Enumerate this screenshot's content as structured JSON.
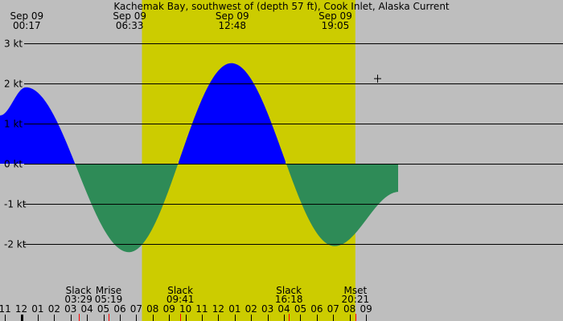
{
  "chart_data": {
    "type": "area",
    "title": "Kachemak Bay, southwest of (depth 57 ft), Cook Inlet, Alaska Current",
    "unit": "kt",
    "ylim": [
      -3,
      3
    ],
    "y_ticks": [
      {
        "value": 3,
        "label": "3 kt"
      },
      {
        "value": 2,
        "label": "2 kt"
      },
      {
        "value": 1,
        "label": "1 kt"
      },
      {
        "value": 0,
        "label": "0 kt"
      },
      {
        "value": -1,
        "label": "-1 kt"
      },
      {
        "value": -2,
        "label": "-2 kt"
      }
    ],
    "x_hours_range": [
      -1.3,
      33.0
    ],
    "daylight_hours": [
      7.35,
      20.35
    ],
    "extrema": [
      {
        "date": "Sep 09",
        "time": "00:17",
        "hours": 0.283,
        "speed_kt": 1.9
      },
      {
        "date": "Sep 09",
        "time": "06:33",
        "hours": 6.55,
        "speed_kt": -2.2
      },
      {
        "date": "Sep 09",
        "time": "12:48",
        "hours": 12.8,
        "speed_kt": 2.5
      },
      {
        "date": "Sep 09",
        "time": "19:05",
        "hours": 19.083,
        "speed_kt": -2.05
      }
    ],
    "curve_start": {
      "hours": -1.3,
      "speed_kt": 1.2
    },
    "curve_end": {
      "hours": 23.0,
      "speed_kt": -0.7
    },
    "events": [
      {
        "label": "Slack",
        "time": "03:29",
        "hours": 3.483,
        "tick_color": "#ff0000"
      },
      {
        "label": "Mrise",
        "time": "05:19",
        "hours": 5.317,
        "tick_color": "#ff0000"
      },
      {
        "label": "Slack",
        "time": "09:41",
        "hours": 9.683,
        "tick_color": "#ff0000"
      },
      {
        "label": "Slack",
        "time": "16:18",
        "hours": 16.3,
        "tick_color": "#ff0000"
      },
      {
        "label": "Mset",
        "time": "20:21",
        "hours": 20.35,
        "tick_color": "#ff0000"
      }
    ],
    "hour_ticks": [
      {
        "label": "11",
        "hours": -1
      },
      {
        "label": "12",
        "hours": 0,
        "midnight": true
      },
      {
        "label": "01",
        "hours": 1
      },
      {
        "label": "02",
        "hours": 2
      },
      {
        "label": "03",
        "hours": 3
      },
      {
        "label": "04",
        "hours": 4
      },
      {
        "label": "05",
        "hours": 5
      },
      {
        "label": "06",
        "hours": 6
      },
      {
        "label": "07",
        "hours": 7
      },
      {
        "label": "08",
        "hours": 8
      },
      {
        "label": "09",
        "hours": 9
      },
      {
        "label": "10",
        "hours": 10
      },
      {
        "label": "11",
        "hours": 11
      },
      {
        "label": "12",
        "hours": 12
      },
      {
        "label": "01",
        "hours": 13
      },
      {
        "label": "02",
        "hours": 14
      },
      {
        "label": "03",
        "hours": 15
      },
      {
        "label": "04",
        "hours": 16
      },
      {
        "label": "05",
        "hours": 17
      },
      {
        "label": "06",
        "hours": 18
      },
      {
        "label": "07",
        "hours": 19
      },
      {
        "label": "08",
        "hours": 20
      },
      {
        "label": "09",
        "hours": 21
      }
    ],
    "colors": {
      "background": "#bebebe",
      "daylight": "#cccc00",
      "flood": "#0000ff",
      "ebb": "#2e8b57",
      "gridline": "#000000",
      "event_tick": "#ff0000"
    }
  }
}
